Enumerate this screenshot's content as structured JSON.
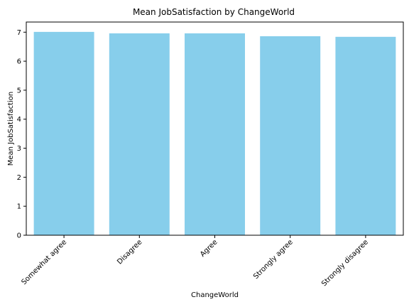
{
  "chart_data": {
    "type": "bar",
    "title": "Mean JobSatisfaction by ChangeWorld",
    "xlabel": "ChangeWorld",
    "ylabel": "Mean JobSatisfaction",
    "categories": [
      "Somewhat agree",
      "Disagree",
      "Agree",
      "Strongly agree",
      "Strongly disagree"
    ],
    "values": [
      7.01,
      6.96,
      6.96,
      6.86,
      6.84
    ],
    "ylim": [
      0,
      7.35
    ],
    "yticks": [
      0,
      1,
      2,
      3,
      4,
      5,
      6,
      7
    ],
    "bar_color": "#87ceeb",
    "grid": false,
    "legend": "none"
  }
}
